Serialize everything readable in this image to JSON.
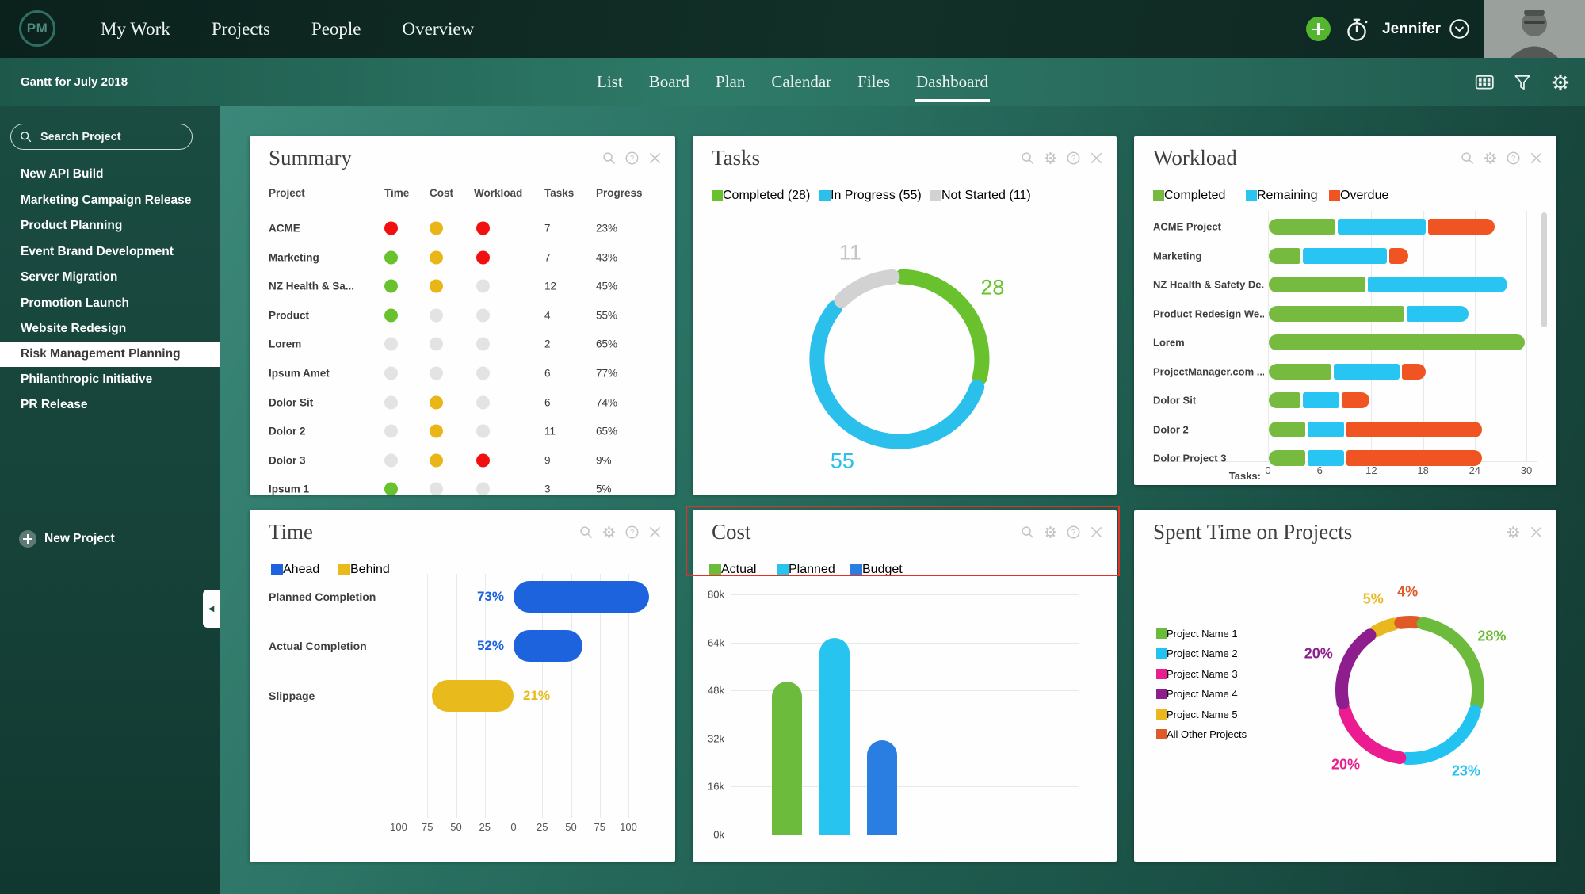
{
  "colors": {
    "status": {
      "red": "#f20f0f",
      "yellow": "#e9b517",
      "green": "#68c12d",
      "gray": "#e3e3e3"
    },
    "accent_green": "#54b52e"
  },
  "topnav": {
    "logo": "PM",
    "items": [
      {
        "label": "My Work",
        "active": false
      },
      {
        "label": "Projects",
        "active": true
      },
      {
        "label": "People",
        "active": false
      },
      {
        "label": "Overview",
        "active": false
      }
    ],
    "user_name": "Jennifer",
    "icons": [
      "add-circle",
      "stopwatch",
      "chevron-down-circle"
    ]
  },
  "subnav": {
    "context_title": "Gantt for July 2018",
    "tabs": [
      {
        "label": "List",
        "active": false
      },
      {
        "label": "Board",
        "active": false
      },
      {
        "label": "Plan",
        "active": false
      },
      {
        "label": "Calendar",
        "active": false
      },
      {
        "label": "Files",
        "active": false
      },
      {
        "label": "Dashboard",
        "active": true
      }
    ],
    "icons": [
      "grid",
      "filter",
      "gear"
    ]
  },
  "sidebar": {
    "search_placeholder": "Search Project",
    "projects": [
      {
        "label": "New API Build",
        "selected": false
      },
      {
        "label": "Marketing Campaign Release",
        "selected": false
      },
      {
        "label": "Product Planning",
        "selected": false
      },
      {
        "label": "Event Brand Development",
        "selected": false
      },
      {
        "label": "Server Migration",
        "selected": false
      },
      {
        "label": "Promotion Launch",
        "selected": false
      },
      {
        "label": "Website Redesign",
        "selected": false
      },
      {
        "label": "Risk Management Planning",
        "selected": true
      },
      {
        "label": "Philanthropic Initiative",
        "selected": false
      },
      {
        "label": "PR Release",
        "selected": false
      }
    ],
    "new_project_label": "New Project"
  },
  "widgets": {
    "summary": {
      "title": "Summary",
      "icons": [
        "search",
        "help",
        "close"
      ],
      "columns": [
        "Project",
        "Time",
        "Cost",
        "Workload",
        "Tasks",
        "Progress"
      ],
      "rows": [
        {
          "project": "ACME",
          "time": "red",
          "cost": "yellow",
          "workload": "red",
          "tasks": "7",
          "progress": "23%"
        },
        {
          "project": "Marketing",
          "time": "green",
          "cost": "yellow",
          "workload": "red",
          "tasks": "7",
          "progress": "43%"
        },
        {
          "project": "NZ Health & Sa...",
          "time": "green",
          "cost": "yellow",
          "workload": "gray",
          "tasks": "12",
          "progress": "45%"
        },
        {
          "project": "Product",
          "time": "green",
          "cost": "gray",
          "workload": "gray",
          "tasks": "4",
          "progress": "55%"
        },
        {
          "project": "Lorem",
          "time": "gray",
          "cost": "gray",
          "workload": "gray",
          "tasks": "2",
          "progress": "65%"
        },
        {
          "project": "Ipsum Amet",
          "time": "gray",
          "cost": "gray",
          "workload": "gray",
          "tasks": "6",
          "progress": "77%"
        },
        {
          "project": "Dolor Sit",
          "time": "gray",
          "cost": "yellow",
          "workload": "gray",
          "tasks": "6",
          "progress": "74%"
        },
        {
          "project": "Dolor 2",
          "time": "gray",
          "cost": "yellow",
          "workload": "gray",
          "tasks": "11",
          "progress": "65%"
        },
        {
          "project": "Dolor 3",
          "time": "gray",
          "cost": "yellow",
          "workload": "red",
          "tasks": "9",
          "progress": "9%"
        },
        {
          "project": "Ipsum 1",
          "time": "green",
          "cost": "gray",
          "workload": "gray",
          "tasks": "3",
          "progress": "5%"
        }
      ]
    },
    "tasks": {
      "title": "Tasks",
      "icons": [
        "search",
        "gear",
        "help",
        "close"
      ],
      "chart_data": {
        "type": "donut",
        "legend": [
          {
            "label": "Completed (28)",
            "color": "#68c12d"
          },
          {
            "label": "In Progress (55)",
            "color": "#2bbfec"
          },
          {
            "label": "Not Started (11)",
            "color": "#d2d2d2"
          }
        ],
        "segments": [
          {
            "name": "Completed",
            "value": 28,
            "label": "28",
            "color": "#68c12d",
            "label_color": "#68c12d"
          },
          {
            "name": "In Progress",
            "value": 55,
            "label": "55",
            "color": "#2bbfec",
            "label_color": "#2bbfec"
          },
          {
            "name": "Not Started",
            "value": 11,
            "label": "11",
            "color": "#d2d2d2",
            "label_color": "#c4c4c4"
          }
        ],
        "start_angle": 2,
        "gap": 7
      }
    },
    "workload": {
      "title": "Workload",
      "icons": [
        "search",
        "gear",
        "help",
        "close"
      ],
      "chart_data": {
        "type": "stacked-bar-h",
        "legend": [
          {
            "label": "Completed",
            "color": "#76ba40"
          },
          {
            "label": "Remaining",
            "color": "#29c5f2"
          },
          {
            "label": "Overdue",
            "color": "#f05423"
          }
        ],
        "axis_label": "Tasks:",
        "ticks": [
          0,
          6,
          12,
          18,
          24,
          30
        ],
        "xmax": 30,
        "rows": [
          {
            "label": "ACME Project",
            "completed": 8,
            "remaining": 10.5,
            "overdue": 8
          },
          {
            "label": "Marketing",
            "completed": 4,
            "remaining": 10,
            "overdue": 2.5
          },
          {
            "label": "NZ Health & Safety De...",
            "completed": 11.5,
            "remaining": 16.5,
            "overdue": 0
          },
          {
            "label": "Product Redesign We...",
            "completed": 16,
            "remaining": 7.5,
            "overdue": 0
          },
          {
            "label": "Lorem",
            "completed": 30,
            "remaining": 0,
            "overdue": 0
          },
          {
            "label": "ProjectManager.com ...",
            "completed": 7.5,
            "remaining": 8,
            "overdue": 3
          },
          {
            "label": "Dolor Sit",
            "completed": 4,
            "remaining": 4.5,
            "overdue": 3.5
          },
          {
            "label": "Dolor 2",
            "completed": 4.5,
            "remaining": 4.5,
            "overdue": 16
          },
          {
            "label": "Dolor Project 3",
            "completed": 4.5,
            "remaining": 4.5,
            "overdue": 16
          }
        ]
      }
    },
    "time": {
      "title": "Time",
      "icons": [
        "search",
        "gear",
        "help",
        "close"
      ],
      "chart_data": {
        "type": "diverging-bar-h",
        "legend": [
          {
            "label": "Ahead",
            "color": "#1d63dd"
          },
          {
            "label": "Behind",
            "color": "#e9ba1c"
          }
        ],
        "ticks": [
          "100",
          "75",
          "50",
          "25",
          "0",
          "25",
          "50",
          "75",
          "100"
        ],
        "rows": [
          {
            "label": "Planned Completion",
            "value_label": "73%",
            "value": 73,
            "extent": 118,
            "side": "right",
            "color": "#1d63dd"
          },
          {
            "label": "Actual Completion",
            "value_label": "52%",
            "value": 52,
            "extent": 60,
            "side": "right",
            "color": "#1d63dd"
          },
          {
            "label": "Slippage",
            "value_label": "21%",
            "value": 21,
            "extent": 71,
            "side": "left",
            "color": "#e9ba1c"
          }
        ]
      }
    },
    "cost": {
      "title": "Cost",
      "icons": [
        "search",
        "gear",
        "help",
        "close"
      ],
      "highlighted": true,
      "chart_data": {
        "type": "bar",
        "legend": [
          {
            "label": "Actual",
            "color": "#6cbb3c"
          },
          {
            "label": "Planned",
            "color": "#28c4f0"
          },
          {
            "label": "Budget",
            "color": "#2a7de1"
          }
        ],
        "yticks": [
          "80k",
          "64k",
          "48k",
          "32k",
          "16k",
          "0k"
        ],
        "ymax": 80,
        "bars": [
          {
            "name": "Actual",
            "value": 51,
            "color": "#6cbb3c"
          },
          {
            "name": "Planned",
            "value": 65.5,
            "color": "#28c4f0"
          },
          {
            "name": "Budget",
            "value": 31.5,
            "color": "#2a7de1"
          }
        ]
      }
    },
    "spent": {
      "title": "Spent Time on Projects",
      "icons": [
        "gear",
        "close"
      ],
      "chart_data": {
        "type": "donut",
        "legend": [
          {
            "label": "Project Name 1",
            "color": "#6cbb3c"
          },
          {
            "label": "Project Name 2",
            "color": "#22c3f0"
          },
          {
            "label": "Project Name 3",
            "color": "#ea1c90"
          },
          {
            "label": "Project Name 4",
            "color": "#8e1d8e"
          },
          {
            "label": "Project Name 5",
            "color": "#e8b81e"
          },
          {
            "label": "All Other Projects",
            "color": "#e05a28"
          }
        ],
        "segments": [
          {
            "name": "Project Name 5",
            "value": 5,
            "label": "5%",
            "color": "#e8b81e"
          },
          {
            "name": "All Other Projects",
            "value": 4,
            "label": "4%",
            "color": "#e05a28"
          },
          {
            "name": "Project Name 1",
            "value": 28,
            "label": "28%",
            "color": "#6cbb3c"
          },
          {
            "name": "Project Name 2",
            "value": 23,
            "label": "23%",
            "color": "#22c3f0"
          },
          {
            "name": "Project Name 3",
            "value": 20,
            "label": "20%",
            "color": "#ea1c90"
          },
          {
            "name": "Project Name 4",
            "value": 20,
            "label": "20%",
            "color": "#8e1d8e"
          }
        ],
        "start_angle": -30,
        "gap": 6
      }
    }
  }
}
